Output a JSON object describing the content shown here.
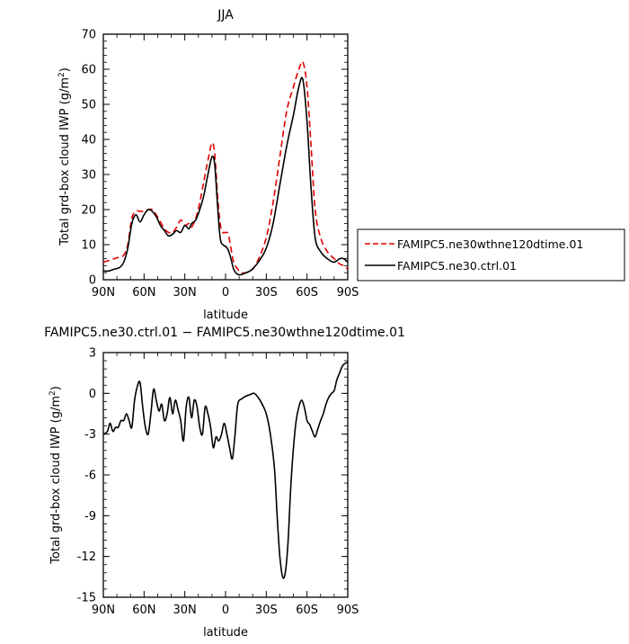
{
  "chart_data": [
    {
      "type": "line",
      "title": "JJA",
      "xlabel": "latitude",
      "ylabel": "Total grd-box cloud IWP (g/m",
      "ylabel_sup": "2",
      "ylabel_end": ")",
      "xlim": [
        90,
        -90
      ],
      "ylim": [
        0,
        70
      ],
      "x_ticks": [
        90,
        60,
        30,
        0,
        -30,
        -60,
        -90
      ],
      "x_tick_labels": [
        "90N",
        "60N",
        "30N",
        "0",
        "30S",
        "60S",
        "90S"
      ],
      "y_ticks": [
        0,
        10,
        20,
        30,
        40,
        50,
        60,
        70
      ],
      "y_tick_labels": [
        "0",
        "10",
        "20",
        "30",
        "40",
        "50",
        "60",
        "70"
      ],
      "legend_placement": "right",
      "series": [
        {
          "name": "FAMIPC5.ne30wthne120dtime.01",
          "color": "#e00000",
          "dash": "dashed",
          "x": [
            90,
            86,
            82,
            78,
            75,
            72,
            69,
            66,
            63,
            60,
            57,
            54,
            51,
            48,
            45,
            42,
            39,
            36,
            33,
            30,
            27,
            25,
            22,
            19,
            16,
            13,
            10,
            8,
            6,
            4,
            2,
            0,
            -2,
            -4,
            -6,
            -9,
            -12,
            -15,
            -18,
            -21,
            -25,
            -30,
            -35,
            -40,
            -45,
            -50,
            -54,
            -57,
            -60,
            -63,
            -66,
            -70,
            -75,
            -80,
            -84,
            -87,
            -90
          ],
          "y": [
            5,
            5.5,
            6,
            6.5,
            7,
            10,
            17.5,
            19.5,
            19.5,
            19.5,
            20,
            20,
            18.5,
            16.5,
            14.5,
            13.5,
            13.5,
            15,
            17,
            15.5,
            16,
            15,
            17.5,
            22,
            28,
            34,
            39,
            36,
            25,
            16,
            13.5,
            13.5,
            13,
            9,
            5,
            3,
            2,
            2,
            2.5,
            3.5,
            6.5,
            12,
            22,
            35,
            48,
            55,
            60,
            62,
            55,
            38,
            20,
            12,
            8,
            6,
            4.5,
            4,
            3
          ]
        },
        {
          "name": "FAMIPC5.ne30.ctrl.01",
          "color": "#000000",
          "dash": "solid",
          "x": [
            90,
            86,
            82,
            78,
            75,
            72,
            69,
            66,
            63,
            60,
            57,
            54,
            51,
            48,
            45,
            42,
            39,
            36,
            33,
            30,
            27,
            25,
            22,
            19,
            16,
            13,
            10,
            8,
            6,
            4,
            2,
            0,
            -2,
            -4,
            -6,
            -9,
            -12,
            -15,
            -18,
            -21,
            -25,
            -30,
            -35,
            -40,
            -45,
            -50,
            -54,
            -57,
            -60,
            -63,
            -66,
            -70,
            -75,
            -80,
            -84,
            -87,
            -90
          ],
          "y": [
            2.5,
            2.5,
            3,
            3.5,
            5,
            9,
            16,
            18.5,
            16.5,
            18.5,
            20,
            19.5,
            18,
            15.5,
            14,
            12.5,
            13,
            14,
            13.5,
            15.5,
            14.5,
            16,
            17,
            20,
            24,
            30,
            35,
            33,
            22,
            12,
            10,
            9.5,
            8.5,
            6,
            3,
            1.5,
            1.5,
            2,
            2.5,
            3.5,
            5.5,
            9,
            16,
            27,
            38,
            47,
            55,
            57,
            45,
            26,
            12,
            8,
            6,
            5,
            6,
            6,
            5
          ]
        }
      ]
    },
    {
      "type": "line",
      "title": "FAMIPC5.ne30.ctrl.01 − FAMIPC5.ne30wthne120dtime.01",
      "xlabel": "latitude",
      "ylabel": "Total grd-box cloud IWP (g/m",
      "ylabel_sup": "2",
      "ylabel_end": ")",
      "xlim": [
        90,
        -90
      ],
      "ylim": [
        -15,
        3
      ],
      "x_ticks": [
        90,
        60,
        30,
        0,
        -30,
        -60,
        -90
      ],
      "x_tick_labels": [
        "90N",
        "60N",
        "30N",
        "0",
        "30S",
        "60S",
        "90S"
      ],
      "y_ticks": [
        3,
        0,
        -3,
        -6,
        -9,
        -12,
        -15
      ],
      "y_tick_labels": [
        "3",
        "0",
        "-3",
        "-6",
        "-9",
        "-12",
        "-15"
      ],
      "series": [
        {
          "color": "#000000",
          "dash": "solid",
          "x": [
            90,
            87,
            85,
            83,
            81,
            79,
            77,
            75,
            73,
            71,
            69,
            67,
            65,
            63,
            61,
            59,
            57,
            55,
            53,
            51,
            49,
            47,
            45,
            43,
            41,
            39,
            37,
            35,
            33,
            31,
            29,
            27,
            25,
            23,
            21,
            19,
            17,
            15,
            13,
            11,
            9,
            7,
            5,
            3,
            1,
            -1,
            -3,
            -5,
            -7,
            -9,
            -12,
            -15,
            -18,
            -21,
            -24,
            -27,
            -30,
            -33,
            -36,
            -38,
            -40,
            -42,
            -44,
            -46,
            -48,
            -50,
            -52,
            -54,
            -56,
            -58,
            -60,
            -62,
            -64,
            -66,
            -68,
            -70,
            -72,
            -74,
            -76,
            -78,
            -80,
            -82,
            -84,
            -86,
            -88,
            -90
          ],
          "y": [
            -3,
            -2.8,
            -2.2,
            -2.8,
            -2.5,
            -2.5,
            -2,
            -2,
            -1.5,
            -2,
            -2.5,
            -0.5,
            0.5,
            0.8,
            -1,
            -2.5,
            -3,
            -1.5,
            0.3,
            -0.5,
            -1.3,
            -0.8,
            -2,
            -1.5,
            -0.3,
            -1.5,
            -0.5,
            -1.2,
            -2,
            -3.5,
            -1,
            -0.3,
            -1.8,
            -0.5,
            -1,
            -2.5,
            -3,
            -1,
            -1.5,
            -2.5,
            -4,
            -3.2,
            -3.5,
            -3,
            -2.2,
            -3,
            -4,
            -4.8,
            -3,
            -0.8,
            -0.4,
            -0.2,
            -0.1,
            0,
            -0.3,
            -0.8,
            -1.5,
            -3,
            -5.5,
            -9,
            -12,
            -13.5,
            -13.2,
            -11,
            -7,
            -4,
            -2,
            -1,
            -0.5,
            -1,
            -2,
            -2.3,
            -2.8,
            -3.2,
            -2.6,
            -2,
            -1.5,
            -0.8,
            -0.3,
            0,
            0.2,
            1,
            1.5,
            2,
            2.2,
            2.3
          ]
        }
      ]
    }
  ]
}
